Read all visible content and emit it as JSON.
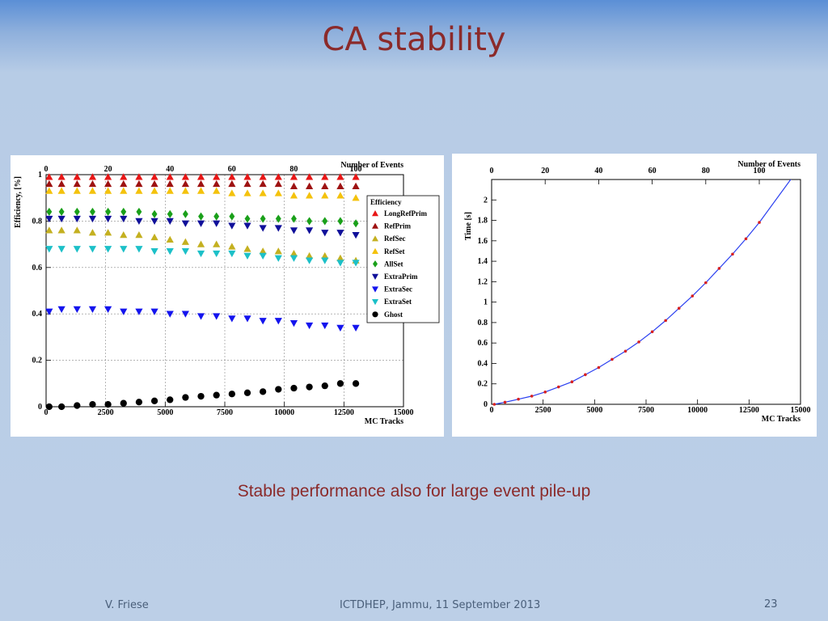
{
  "slide": {
    "title": "CA stability",
    "caption": "Stable performance also for large event pile-up",
    "footer_left": "V. Friese",
    "footer_center": "ICTDHEP, Jammu, 11 September 2013",
    "page_number": "23"
  },
  "chart_data": [
    {
      "type": "scatter",
      "xlabel": "MC Tracks",
      "ylabel": "Efficiency, [%]",
      "top_axis_label": "Number of Events",
      "xlim": [
        0,
        15000
      ],
      "ylim": [
        0,
        1
      ],
      "top_xlim": [
        0,
        115.4
      ],
      "xticks": [
        "0",
        "2500",
        "5000",
        "7500",
        "10000",
        "12500",
        "15000"
      ],
      "yticks": [
        "0",
        "0.2",
        "0.4",
        "0.6",
        "0.8",
        "1"
      ],
      "top_ticks": [
        "0",
        "20",
        "40",
        "60",
        "80",
        "100"
      ],
      "grid": true,
      "legend_title": "Efficiency",
      "legend_position": "right",
      "x": [
        130,
        650,
        1300,
        1950,
        2600,
        3250,
        3900,
        4550,
        5200,
        5850,
        6500,
        7150,
        7800,
        8450,
        9100,
        9750,
        10400,
        11050,
        11700,
        12350,
        13000
      ],
      "series": [
        {
          "name": "LongRefPrim",
          "marker": "triangle-up",
          "color": "#e81616",
          "values": [
            0.99,
            0.99,
            0.99,
            0.99,
            0.99,
            0.99,
            0.99,
            0.99,
            0.99,
            0.99,
            0.99,
            0.99,
            0.99,
            0.99,
            0.99,
            0.99,
            0.99,
            0.99,
            0.99,
            0.99,
            0.99
          ]
        },
        {
          "name": "RefPrim",
          "marker": "triangle-up",
          "color": "#9e1212",
          "values": [
            0.96,
            0.96,
            0.96,
            0.96,
            0.96,
            0.96,
            0.96,
            0.96,
            0.96,
            0.96,
            0.96,
            0.96,
            0.96,
            0.96,
            0.96,
            0.96,
            0.95,
            0.95,
            0.95,
            0.95,
            0.95
          ]
        },
        {
          "name": "RefSec",
          "marker": "triangle-up",
          "color": "#c4b020",
          "values": [
            0.76,
            0.76,
            0.76,
            0.75,
            0.75,
            0.74,
            0.74,
            0.73,
            0.72,
            0.71,
            0.7,
            0.7,
            0.69,
            0.68,
            0.67,
            0.67,
            0.66,
            0.65,
            0.65,
            0.64,
            0.63
          ]
        },
        {
          "name": "RefSet",
          "marker": "triangle-up",
          "color": "#f4c20c",
          "values": [
            0.93,
            0.93,
            0.93,
            0.93,
            0.93,
            0.93,
            0.93,
            0.93,
            0.93,
            0.93,
            0.93,
            0.93,
            0.92,
            0.92,
            0.92,
            0.92,
            0.91,
            0.91,
            0.91,
            0.91,
            0.9
          ]
        },
        {
          "name": "AllSet",
          "marker": "diamond",
          "color": "#1aa01a",
          "values": [
            0.84,
            0.84,
            0.84,
            0.84,
            0.84,
            0.84,
            0.84,
            0.83,
            0.83,
            0.83,
            0.82,
            0.82,
            0.82,
            0.81,
            0.81,
            0.81,
            0.81,
            0.8,
            0.8,
            0.8,
            0.79
          ]
        },
        {
          "name": "ExtraPrim",
          "marker": "triangle-down",
          "color": "#10109a",
          "values": [
            0.81,
            0.81,
            0.81,
            0.81,
            0.81,
            0.81,
            0.8,
            0.8,
            0.8,
            0.79,
            0.79,
            0.79,
            0.78,
            0.78,
            0.77,
            0.77,
            0.76,
            0.76,
            0.75,
            0.75,
            0.74
          ]
        },
        {
          "name": "ExtraSec",
          "marker": "triangle-down",
          "color": "#1414ee",
          "values": [
            0.41,
            0.42,
            0.42,
            0.42,
            0.42,
            0.41,
            0.41,
            0.41,
            0.4,
            0.4,
            0.39,
            0.39,
            0.38,
            0.38,
            0.37,
            0.37,
            0.36,
            0.35,
            0.35,
            0.34,
            0.34
          ]
        },
        {
          "name": "ExtraSet",
          "marker": "triangle-down",
          "color": "#1cc0c8",
          "values": [
            0.68,
            0.68,
            0.68,
            0.68,
            0.68,
            0.68,
            0.68,
            0.67,
            0.67,
            0.67,
            0.66,
            0.66,
            0.66,
            0.65,
            0.65,
            0.64,
            0.64,
            0.63,
            0.63,
            0.62,
            0.62
          ]
        },
        {
          "name": "Ghost",
          "marker": "circle",
          "color": "#000000",
          "values": [
            0.0,
            0.0,
            0.005,
            0.01,
            0.01,
            0.015,
            0.02,
            0.025,
            0.03,
            0.04,
            0.045,
            0.05,
            0.055,
            0.06,
            0.065,
            0.075,
            0.08,
            0.085,
            0.09,
            0.1,
            0.1
          ]
        }
      ]
    },
    {
      "type": "line",
      "xlabel": "MC Tracks",
      "ylabel": "Time [s]",
      "top_axis_label": "Number of Events",
      "xlim": [
        0,
        15000
      ],
      "ylim": [
        0,
        2.2
      ],
      "top_xlim": [
        0,
        115.4
      ],
      "xticks": [
        "0",
        "2500",
        "5000",
        "7500",
        "10000",
        "12500",
        "15000"
      ],
      "yticks": [
        "0",
        "0.2",
        "0.4",
        "0.6",
        "0.8",
        "1",
        "1.2",
        "1.4",
        "1.6",
        "1.8",
        "2"
      ],
      "top_ticks": [
        "0",
        "20",
        "40",
        "60",
        "80",
        "100"
      ],
      "grid": false,
      "line_color": "#2a3ff0",
      "point_color": "#d82020",
      "x": [
        130,
        650,
        1300,
        1950,
        2600,
        3250,
        3900,
        4550,
        5200,
        5850,
        6500,
        7150,
        7800,
        8450,
        9100,
        9750,
        10400,
        11050,
        11700,
        12350,
        13000
      ],
      "values": [
        0.0,
        0.02,
        0.05,
        0.08,
        0.12,
        0.17,
        0.22,
        0.29,
        0.36,
        0.44,
        0.52,
        0.61,
        0.71,
        0.82,
        0.94,
        1.06,
        1.19,
        1.33,
        1.47,
        1.62,
        1.78
      ]
    }
  ]
}
